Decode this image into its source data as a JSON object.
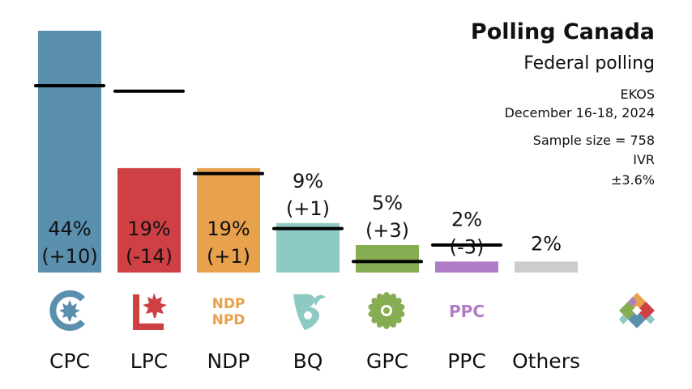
{
  "header": {
    "title": "Polling Canada",
    "subtitle": "Federal polling",
    "pollster": "EKOS",
    "dates": "December 16-18, 2024",
    "sample_size": "Sample size = 758",
    "method": "IVR",
    "margin": "±3.6%"
  },
  "chart_data": {
    "type": "bar",
    "ylim": [
      0,
      44
    ],
    "categories": [
      "CPC",
      "LPC",
      "NDP",
      "BQ",
      "GPC",
      "PPC",
      "Others"
    ],
    "values": [
      44,
      19,
      19,
      9,
      5,
      2,
      2
    ],
    "previous": [
      34,
      33,
      18,
      8,
      2,
      5,
      null
    ],
    "value_labels": [
      "44%",
      "19%",
      "19%",
      "9%",
      "5%",
      "2%",
      "2%"
    ],
    "change_labels": [
      "(+10)",
      "(-14)",
      "(+1)",
      "(+1)",
      "(+3)",
      "(-3)",
      ""
    ],
    "colors": [
      "#5a8fae",
      "#cf4044",
      "#e8a14c",
      "#8ecac4",
      "#86ad52",
      "#b07cc6",
      "#cccccc"
    ],
    "logos": [
      "cpc-logo-icon",
      "lpc-logo-icon",
      "ndp-logo-icon",
      "bq-logo-icon",
      "gpc-logo-icon",
      "ppc-logo-icon",
      ""
    ],
    "ndp_logo_text": [
      "NDP",
      "NPD"
    ],
    "ppc_logo_text": "PPC"
  }
}
